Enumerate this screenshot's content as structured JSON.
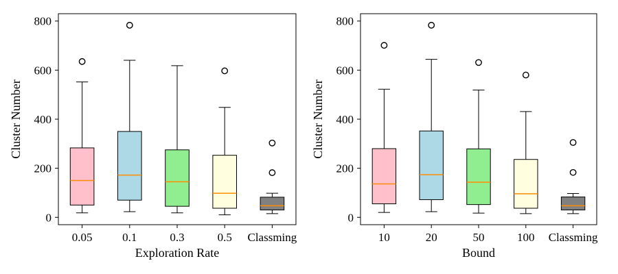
{
  "chart_data": [
    {
      "type": "box",
      "xlabel": "Exploration Rate",
      "ylabel": "Cluster Number",
      "ylim": [
        -30,
        830
      ],
      "yticks": [
        0,
        200,
        400,
        600,
        800
      ],
      "categories": [
        "0.05",
        "0.1",
        "0.3",
        "0.5",
        "Classming"
      ],
      "series": [
        {
          "category": "0.05",
          "whisker_low": 18,
          "q1": 50,
          "median": 150,
          "q3": 283,
          "whisker_high": 552,
          "outliers": [
            635
          ],
          "color": "#ffc0cb"
        },
        {
          "category": "0.1",
          "whisker_low": 23,
          "q1": 70,
          "median": 172,
          "q3": 350,
          "whisker_high": 640,
          "outliers": [
            783
          ],
          "color": "#add8e6"
        },
        {
          "category": "0.3",
          "whisker_low": 18,
          "q1": 45,
          "median": 145,
          "q3": 275,
          "whisker_high": 618,
          "outliers": [],
          "color": "#90ee90"
        },
        {
          "category": "0.5",
          "whisker_low": 10,
          "q1": 37,
          "median": 98,
          "q3": 253,
          "whisker_high": 448,
          "outliers": [
            597
          ],
          "color": "#ffffe0"
        },
        {
          "category": "Classming",
          "whisker_low": 15,
          "q1": 30,
          "median": 47,
          "q3": 82,
          "whisker_high": 98,
          "outliers": [
            303,
            182
          ],
          "color": "#808080"
        }
      ]
    },
    {
      "type": "box",
      "xlabel": "Bound",
      "ylabel": "Cluster Number",
      "ylim": [
        -30,
        830
      ],
      "yticks": [
        0,
        200,
        400,
        600,
        800
      ],
      "categories": [
        "10",
        "20",
        "50",
        "100",
        "Classming"
      ],
      "series": [
        {
          "category": "10",
          "whisker_low": 20,
          "q1": 55,
          "median": 136,
          "q3": 280,
          "whisker_high": 522,
          "outliers": [
            701
          ],
          "color": "#ffc0cb"
        },
        {
          "category": "20",
          "whisker_low": 23,
          "q1": 72,
          "median": 174,
          "q3": 352,
          "whisker_high": 644,
          "outliers": [
            783
          ],
          "color": "#add8e6"
        },
        {
          "category": "50",
          "whisker_low": 17,
          "q1": 52,
          "median": 143,
          "q3": 279,
          "whisker_high": 519,
          "outliers": [
            631
          ],
          "color": "#90ee90"
        },
        {
          "category": "100",
          "whisker_low": 15,
          "q1": 37,
          "median": 96,
          "q3": 236,
          "whisker_high": 431,
          "outliers": [
            580
          ],
          "color": "#ffffe0"
        },
        {
          "category": "Classming",
          "whisker_low": 15,
          "q1": 30,
          "median": 47,
          "q3": 83,
          "whisker_high": 97,
          "outliers": [
            305,
            183
          ],
          "color": "#808080"
        }
      ]
    }
  ]
}
